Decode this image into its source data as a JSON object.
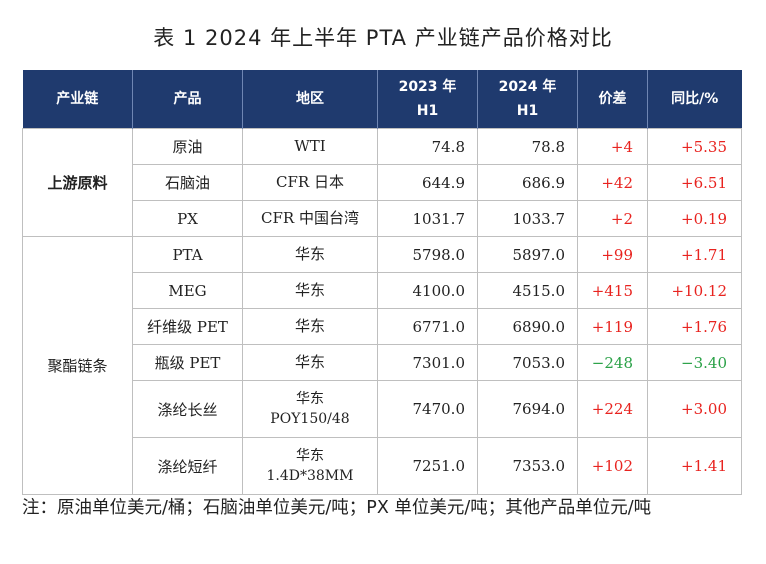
{
  "title": "表 1  2024 年上半年 PTA 产业链产品价格对比",
  "headers": {
    "chain": "产业链",
    "product": "产品",
    "region": "地区",
    "h2023_year": "2023 年",
    "h2023_half": "H1",
    "h2024_year": "2024 年",
    "h2024_half": "H1",
    "diff": "价差",
    "yoy": "同比/%"
  },
  "groups": {
    "upstream": "上游原料",
    "polyester": "聚酯链条"
  },
  "rows": [
    {
      "product": "原油",
      "region": "WTI",
      "y2023": "74.8",
      "y2024": "78.8",
      "diff": "+4",
      "yoy": "+5.35"
    },
    {
      "product": "石脑油",
      "region": "CFR 日本",
      "y2023": "644.9",
      "y2024": "686.9",
      "diff": "+42",
      "yoy": "+6.51"
    },
    {
      "product": "PX",
      "region": "CFR 中国台湾",
      "y2023": "1031.7",
      "y2024": "1033.7",
      "diff": "+2",
      "yoy": "+0.19"
    },
    {
      "product": "PTA",
      "region": "华东",
      "y2023": "5798.0",
      "y2024": "5897.0",
      "diff": "+99",
      "yoy": "+1.71"
    },
    {
      "product": "MEG",
      "region": "华东",
      "y2023": "4100.0",
      "y2024": "4515.0",
      "diff": "+415",
      "yoy": "+10.12"
    },
    {
      "product": "纤维级 PET",
      "region": "华东",
      "y2023": "6771.0",
      "y2024": "6890.0",
      "diff": "+119",
      "yoy": "+1.76"
    },
    {
      "product": "瓶级 PET",
      "region": "华东",
      "y2023": "7301.0",
      "y2024": "7053.0",
      "diff": "−248",
      "yoy": "−3.40"
    },
    {
      "product": "涤纶长丝",
      "region": "华东",
      "region2": "POY150/48",
      "y2023": "7470.0",
      "y2024": "7694.0",
      "diff": "+224",
      "yoy": "+3.00"
    },
    {
      "product": "涤纶短纤",
      "region": "华东",
      "region2": "1.4D*38MM",
      "y2023": "7251.0",
      "y2024": "7353.0",
      "diff": "+102",
      "yoy": "+1.41"
    }
  ],
  "colors": {
    "header_bg": "#1f3a6e",
    "positive": "#e8231f",
    "negative": "#2aa147"
  },
  "note": "注：原油单位美元/桶；石脑油单位美元/吨；PX 单位美元/吨；其他产品单位元/吨"
}
